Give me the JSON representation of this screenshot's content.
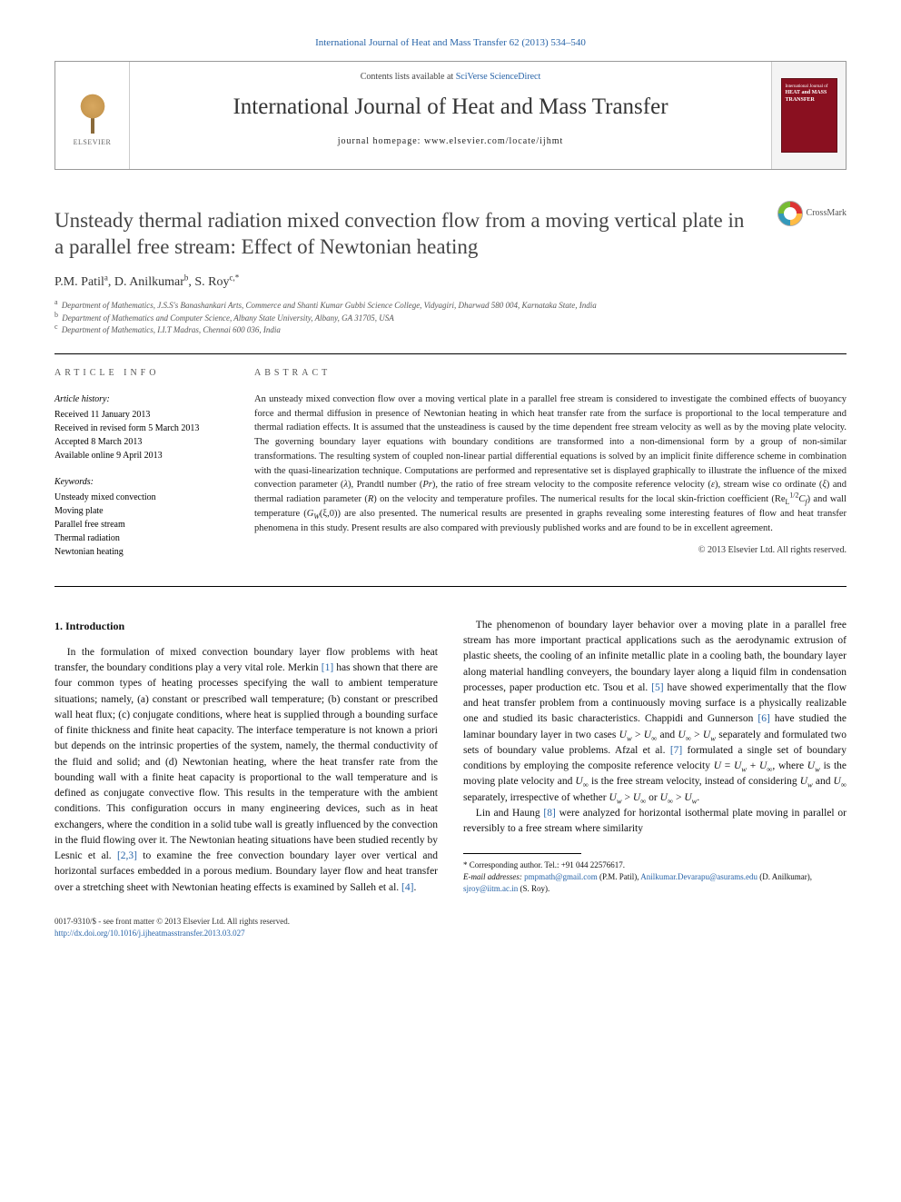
{
  "top_link": "International Journal of Heat and Mass Transfer 62 (2013) 534–540",
  "masthead": {
    "publisher_name": "ELSEVIER",
    "contents_pre": "Contents lists available at ",
    "contents_link": "SciVerse ScienceDirect",
    "journal_title": "International Journal of Heat and Mass Transfer",
    "homepage_pre": "journal homepage: ",
    "homepage_url": "www.elsevier.com/locate/ijhmt",
    "cover_line1": "International Journal of",
    "cover_line2": "HEAT and MASS",
    "cover_line3": "TRANSFER"
  },
  "crossmark_label": "CrossMark",
  "title": "Unsteady thermal radiation mixed convection flow from a moving vertical plate in a parallel free stream: Effect of Newtonian heating",
  "authors_html": "P.M. Patil<sup>a</sup>, D. Anilkumar<sup>b</sup>, S. Roy<sup>c,*</sup>",
  "affiliations": [
    {
      "sup": "a",
      "text": "Department of Mathematics, J.S.S's Banashankari Arts, Commerce and Shanti Kumar Gubbi Science College, Vidyagiri, Dharwad 580 004, Karnataka State, India"
    },
    {
      "sup": "b",
      "text": "Department of Mathematics and Computer Science, Albany State University, Albany, GA 31705, USA"
    },
    {
      "sup": "c",
      "text": "Department of Mathematics, I.I.T Madras, Chennai 600 036, India"
    }
  ],
  "article_info": {
    "head": "ARTICLE INFO",
    "history_head": "Article history:",
    "history": [
      "Received 11 January 2013",
      "Received in revised form 5 March 2013",
      "Accepted 8 March 2013",
      "Available online 9 April 2013"
    ],
    "keywords_head": "Keywords:",
    "keywords": [
      "Unsteady mixed convection",
      "Moving plate",
      "Parallel free stream",
      "Thermal radiation",
      "Newtonian heating"
    ]
  },
  "abstract": {
    "head": "ABSTRACT",
    "text": "An unsteady mixed convection flow over a moving vertical plate in a parallel free stream is considered to investigate the combined effects of buoyancy force and thermal diffusion in presence of Newtonian heating in which heat transfer rate from the surface is proportional to the local temperature and thermal radiation effects. It is assumed that the unsteadiness is caused by the time dependent free stream velocity as well as by the moving plate velocity. The governing boundary layer equations with boundary conditions are transformed into a non-dimensional form by a group of non-similar transformations. The resulting system of coupled non-linear partial differential equations is solved by an implicit finite difference scheme in combination with the quasi-linearization technique. Computations are performed and representative set is displayed graphically to illustrate the influence of the mixed convection parameter (λ), Prandtl number (Pr), the ratio of free stream velocity to the composite reference velocity (ε), stream wise co ordinate (ξ) and thermal radiation parameter (R) on the velocity and temperature profiles. The numerical results for the local skin-friction coefficient (Re_L^{1/2}C_f) and wall temperature (G_W(ξ,0)) are also presented. The numerical results are presented in graphs revealing some interesting features of flow and heat transfer phenomena in this study. Present results are also compared with previously published works and are found to be in excellent agreement.",
    "copyright": "© 2013 Elsevier Ltd. All rights reserved."
  },
  "body": {
    "section_heading": "1. Introduction",
    "col1_p1_a": "In the formulation of mixed convection boundary layer flow problems with heat transfer, the boundary conditions play a very vital role. Merkin ",
    "col1_cite1": "[1]",
    "col1_p1_b": " has shown that there are four common types of heating processes specifying the wall to ambient temperature situations; namely, (a) constant or prescribed wall temperature; (b) constant or prescribed wall heat flux; (c) conjugate conditions, where heat is supplied through a bounding surface of finite thickness and finite heat capacity. The interface temperature is not known a priori but depends on the intrinsic properties of the system, namely, the thermal conductivity of the fluid and solid; and (d) Newtonian heating, where the heat transfer rate from the bounding wall with a finite heat capacity is proportional to the wall temperature and is defined as conjugate convective flow. This results in the temperature with the ambient conditions. This configuration occurs in many engineering devices, such as in heat exchangers, where the condition in a solid tube wall is greatly influenced by the convection in the fluid flowing over it. The",
    "col2_p1_a": "Newtonian heating situations have been studied recently by Lesnic et al. ",
    "col2_cite23": "[2,3]",
    "col2_p1_b": " to examine the free convection boundary layer over vertical and horizontal surfaces embedded in a porous medium. Boundary layer flow and heat transfer over a stretching sheet with Newtonian heating effects is examined by Salleh et al. ",
    "col2_cite4": "[4]",
    "col2_p1_c": ".",
    "col2_p2_a": "The phenomenon of boundary layer behavior over a moving plate in a parallel free stream has more important practical applications such as the aerodynamic extrusion of plastic sheets, the cooling of an infinite metallic plate in a cooling bath, the boundary layer along material handling conveyers, the boundary layer along a liquid film in condensation processes, paper production etc. Tsou et al. ",
    "col2_cite5": "[5]",
    "col2_p2_b": " have showed experimentally that the flow and heat transfer problem from a continuously moving surface is a physically realizable one and studied its basic characteristics. Chappidi and Gunnerson ",
    "col2_cite6": "[6]",
    "col2_p2_c": " have studied the laminar boundary layer in two cases U_w > U_∞ and U_∞ > U_w separately and formulated two sets of boundary value problems. Afzal et al. ",
    "col2_cite7": "[7]",
    "col2_p2_d": " formulated a single set of boundary conditions by employing the composite reference velocity U = U_w + U_∞, where U_w is the moving plate velocity and U_∞ is the free stream velocity, instead of considering U_w and U_∞ separately, irrespective of whether U_w > U_∞ or U_∞ > U_w.",
    "col2_p3_a": "Lin and Haung ",
    "col2_cite8": "[8]",
    "col2_p3_b": " were analyzed for horizontal isothermal plate moving in parallel or reversibly to a free stream where similarity"
  },
  "footnotes": {
    "corr": "* Corresponding author. Tel.: +91 044 22576617.",
    "emails_label": "E-mail addresses: ",
    "email1": "pmpmath@gmail.com",
    "name1": " (P.M. Patil), ",
    "email2": "Anilkumar.Devarapu@asurams.edu",
    "name2": " (D. Anilkumar), ",
    "email3": "sjroy@iitm.ac.in",
    "name3": " (S. Roy)."
  },
  "footer": {
    "issn_line": "0017-9310/$ - see front matter © 2013 Elsevier Ltd. All rights reserved.",
    "doi": "http://dx.doi.org/10.1016/j.ijheatmasstransfer.2013.03.027"
  },
  "colors": {
    "link": "#2864a8",
    "cover_bg": "#8a1020",
    "border": "#999999"
  }
}
